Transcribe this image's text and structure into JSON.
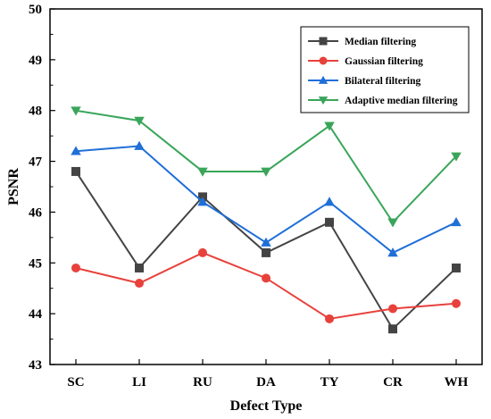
{
  "chart_data": {
    "type": "line",
    "xlabel": "Defect Type",
    "ylabel": "PSNR",
    "ylim": [
      43,
      50
    ],
    "yticks": [
      "43",
      "44",
      "45",
      "46",
      "47",
      "48",
      "49",
      "50"
    ],
    "categories": [
      "SC",
      "LI",
      "RU",
      "DA",
      "TY",
      "CR",
      "WH"
    ],
    "grid": false,
    "legend_position": "top-right",
    "series": [
      {
        "name": "Median filtering",
        "color": "#444444",
        "marker": "square",
        "values": [
          46.8,
          44.9,
          46.3,
          45.2,
          45.8,
          43.7,
          44.9
        ]
      },
      {
        "name": "Gaussian filtering",
        "color": "#e8413c",
        "marker": "circle",
        "values": [
          44.9,
          44.6,
          45.2,
          44.7,
          43.9,
          44.1,
          44.2
        ]
      },
      {
        "name": "Bilateral filtering",
        "color": "#1f6fd8",
        "marker": "triangle-up",
        "values": [
          47.2,
          47.3,
          46.2,
          45.4,
          46.2,
          45.2,
          45.8
        ]
      },
      {
        "name": "Adaptive median filtering",
        "color": "#3aa55a",
        "marker": "triangle-down",
        "values": [
          48.0,
          47.8,
          46.8,
          46.8,
          47.7,
          45.8,
          47.1
        ]
      }
    ]
  }
}
